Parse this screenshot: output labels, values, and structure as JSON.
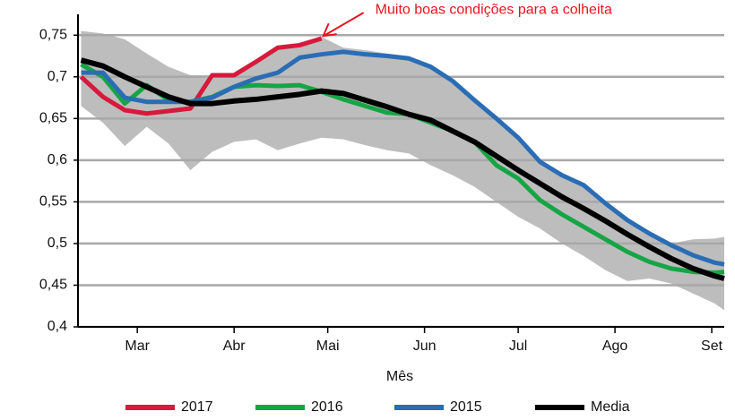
{
  "chart_data": {
    "type": "line",
    "annotation": {
      "text": "Muito boas condições para a colheita",
      "x": 59,
      "y": 0.748,
      "color": "#e8141e"
    },
    "x_label": "Mês",
    "x": [
      -18,
      -11,
      -4,
      3,
      10,
      17,
      24,
      31,
      38,
      45,
      52,
      59,
      66,
      73,
      80,
      87,
      94,
      101,
      108,
      115,
      122,
      129,
      136,
      143,
      150,
      157,
      164,
      171,
      178,
      185,
      188
    ],
    "xlim": [
      -19,
      188
    ],
    "xticks": [
      {
        "value": 0,
        "label": "Mar"
      },
      {
        "value": 31,
        "label": "Abr"
      },
      {
        "value": 61,
        "label": "Mai"
      },
      {
        "value": 92,
        "label": "Jun"
      },
      {
        "value": 122,
        "label": "Jul"
      },
      {
        "value": 153,
        "label": "Ago"
      },
      {
        "value": 184,
        "label": "Set"
      }
    ],
    "ylim": [
      0.4,
      0.775
    ],
    "yticks": [
      {
        "value": 0.4,
        "label": "0,4"
      },
      {
        "value": 0.45,
        "label": "0,45"
      },
      {
        "value": 0.5,
        "label": "0,5"
      },
      {
        "value": 0.55,
        "label": "0,55"
      },
      {
        "value": 0.6,
        "label": "0,6"
      },
      {
        "value": 0.65,
        "label": "0,65"
      },
      {
        "value": 0.7,
        "label": "0,7"
      },
      {
        "value": 0.75,
        "label": "0,75"
      }
    ],
    "grid": true,
    "band": {
      "color": "#bdbdbd",
      "upper": [
        0.755,
        0.752,
        0.745,
        0.728,
        0.712,
        0.702,
        0.702,
        0.703,
        0.718,
        0.735,
        0.74,
        0.748,
        0.735,
        0.732,
        0.728,
        0.725,
        0.712,
        0.695,
        0.672,
        0.65,
        0.627,
        0.6,
        0.585,
        0.572,
        0.55,
        0.53,
        0.514,
        0.5,
        0.505,
        0.506,
        0.508
      ],
      "lower": [
        0.665,
        0.645,
        0.617,
        0.64,
        0.62,
        0.588,
        0.61,
        0.622,
        0.625,
        0.612,
        0.62,
        0.627,
        0.625,
        0.618,
        0.612,
        0.608,
        0.594,
        0.582,
        0.568,
        0.55,
        0.532,
        0.518,
        0.5,
        0.485,
        0.468,
        0.455,
        0.458,
        0.452,
        0.44,
        0.428,
        0.42
      ]
    },
    "series": [
      {
        "name": "2017",
        "color": "#d7193c",
        "values": [
          0.7,
          0.676,
          0.66,
          0.656,
          0.659,
          0.662,
          0.702,
          0.702,
          0.718,
          0.735,
          0.738,
          0.746,
          null,
          null,
          null,
          null,
          null,
          null,
          null,
          null,
          null,
          null,
          null,
          null,
          null,
          null,
          null,
          null,
          null,
          null,
          null
        ]
      },
      {
        "name": "2016",
        "color": "#16a545",
        "values": [
          0.715,
          0.7,
          0.668,
          0.69,
          0.672,
          0.67,
          0.676,
          0.688,
          0.69,
          0.689,
          0.69,
          0.682,
          0.673,
          0.665,
          0.657,
          0.655,
          0.645,
          0.635,
          0.622,
          0.594,
          0.578,
          0.552,
          0.535,
          0.52,
          0.505,
          0.49,
          0.478,
          0.47,
          0.466,
          0.465,
          0.466
        ]
      },
      {
        "name": "2015",
        "color": "#2a6db5",
        "values": [
          0.705,
          0.705,
          0.675,
          0.67,
          0.67,
          0.67,
          0.675,
          0.688,
          0.698,
          0.705,
          0.723,
          0.727,
          0.73,
          0.727,
          0.725,
          0.722,
          0.712,
          0.695,
          0.672,
          0.65,
          0.627,
          0.598,
          0.582,
          0.57,
          0.548,
          0.528,
          0.512,
          0.498,
          0.486,
          0.477,
          0.475
        ]
      },
      {
        "name": "Media",
        "color": "#000000",
        "values": [
          0.72,
          0.713,
          0.7,
          0.688,
          0.676,
          0.668,
          0.668,
          0.671,
          0.673,
          0.676,
          0.679,
          0.683,
          0.68,
          0.672,
          0.664,
          0.655,
          0.648,
          0.635,
          0.622,
          0.605,
          0.588,
          0.572,
          0.556,
          0.542,
          0.527,
          0.511,
          0.496,
          0.482,
          0.47,
          0.461,
          0.458
        ]
      }
    ]
  }
}
